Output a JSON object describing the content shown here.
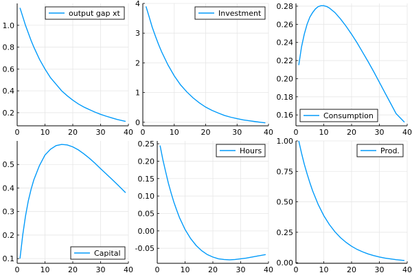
{
  "colors": {
    "series": "#009AFA",
    "grid": "#e6e6e6",
    "axis": "#000000",
    "background": "#ffffff"
  },
  "chart_data": [
    {
      "type": "line",
      "title": "",
      "xlabel": "",
      "ylabel": "",
      "grid": true,
      "legend_position": "top-right",
      "xlim": [
        0,
        40
      ],
      "ylim": [
        0.08,
        1.2
      ],
      "xticks": [
        0,
        10,
        20,
        30,
        40
      ],
      "yticks": [
        0.2,
        0.4,
        0.6,
        0.8,
        1.0
      ],
      "ytick_labels": [
        "0.2",
        "0.4",
        "0.6",
        "0.8",
        "1.0"
      ],
      "series": [
        {
          "name": "output gap xt",
          "x": [
            1,
            2,
            3,
            4,
            5,
            6,
            8,
            10,
            12,
            14,
            16,
            18,
            20,
            22,
            24,
            26,
            28,
            30,
            32,
            34,
            36,
            39
          ],
          "y": [
            1.16,
            1.08,
            1.0,
            0.93,
            0.86,
            0.8,
            0.69,
            0.6,
            0.52,
            0.46,
            0.4,
            0.355,
            0.315,
            0.28,
            0.252,
            0.228,
            0.205,
            0.185,
            0.168,
            0.153,
            0.138,
            0.12
          ]
        }
      ]
    },
    {
      "type": "line",
      "title": "",
      "xlabel": "",
      "ylabel": "",
      "grid": true,
      "legend_position": "top-right",
      "xlim": [
        0,
        40
      ],
      "ylim": [
        -0.12,
        4.0
      ],
      "xticks": [
        0,
        10,
        20,
        30,
        40
      ],
      "yticks": [
        0,
        1,
        2,
        3,
        4
      ],
      "ytick_labels": [
        "0",
        "1",
        "2",
        "3",
        "4"
      ],
      "series": [
        {
          "name": "Investment",
          "x": [
            1,
            2,
            3,
            4,
            5,
            6,
            8,
            10,
            12,
            14,
            16,
            18,
            20,
            22,
            24,
            26,
            28,
            30,
            32,
            34,
            36,
            39
          ],
          "y": [
            3.9,
            3.55,
            3.2,
            2.9,
            2.62,
            2.37,
            1.93,
            1.56,
            1.26,
            1.02,
            0.82,
            0.65,
            0.51,
            0.4,
            0.31,
            0.23,
            0.17,
            0.12,
            0.08,
            0.05,
            0.02,
            -0.02
          ]
        }
      ]
    },
    {
      "type": "line",
      "title": "",
      "xlabel": "",
      "ylabel": "",
      "grid": true,
      "legend_position": "bottom-left",
      "xlim": [
        0,
        40
      ],
      "ylim": [
        0.148,
        0.283
      ],
      "xticks": [
        0,
        10,
        20,
        30,
        40
      ],
      "yticks": [
        0.16,
        0.18,
        0.2,
        0.22,
        0.24,
        0.26,
        0.28
      ],
      "ytick_labels": [
        "0.16",
        "0.18",
        "0.20",
        "0.22",
        "0.24",
        "0.26",
        "0.28"
      ],
      "series": [
        {
          "name": "Consumption",
          "x": [
            1,
            2,
            3,
            4,
            5,
            6,
            7,
            8,
            9,
            10,
            11,
            12,
            14,
            16,
            18,
            20,
            22,
            24,
            26,
            28,
            30,
            32,
            34,
            36,
            39
          ],
          "y": [
            0.215,
            0.235,
            0.249,
            0.26,
            0.268,
            0.273,
            0.277,
            0.2795,
            0.2805,
            0.2805,
            0.2797,
            0.278,
            0.273,
            0.266,
            0.258,
            0.249,
            0.2395,
            0.229,
            0.2185,
            0.2075,
            0.196,
            0.1845,
            0.173,
            0.1615,
            0.152
          ]
        }
      ]
    },
    {
      "type": "line",
      "title": "",
      "xlabel": "",
      "ylabel": "",
      "grid": true,
      "legend_position": "bottom-right",
      "xlim": [
        0,
        40
      ],
      "ylim": [
        0.08,
        0.6
      ],
      "xticks": [
        0,
        10,
        20,
        30,
        40
      ],
      "yticks": [
        0.1,
        0.2,
        0.3,
        0.4,
        0.5
      ],
      "ytick_labels": [
        "0.1",
        "0.2",
        "0.3",
        "0.4",
        "0.5"
      ],
      "series": [
        {
          "name": "Capital",
          "x": [
            1,
            2,
            3,
            4,
            5,
            6,
            8,
            10,
            12,
            14,
            16,
            18,
            20,
            22,
            24,
            26,
            28,
            30,
            32,
            34,
            36,
            39
          ],
          "y": [
            0.1,
            0.2,
            0.28,
            0.345,
            0.395,
            0.435,
            0.495,
            0.54,
            0.565,
            0.58,
            0.585,
            0.583,
            0.575,
            0.562,
            0.545,
            0.526,
            0.505,
            0.482,
            0.46,
            0.438,
            0.415,
            0.38
          ]
        }
      ]
    },
    {
      "type": "line",
      "title": "",
      "xlabel": "",
      "ylabel": "",
      "grid": true,
      "legend_position": "top-right",
      "xlim": [
        0,
        40
      ],
      "ylim": [
        -0.093,
        0.258
      ],
      "xticks": [
        0,
        10,
        20,
        30,
        40
      ],
      "yticks": [
        -0.05,
        0,
        0.05,
        0.1,
        0.15,
        0.2,
        0.25
      ],
      "ytick_labels": [
        "-0.05",
        "0.00",
        "0.05",
        "0.10",
        "0.15",
        "0.20",
        "0.25"
      ],
      "series": [
        {
          "name": "Hours",
          "x": [
            1,
            2,
            3,
            4,
            5,
            6,
            7,
            8,
            10,
            12,
            14,
            16,
            18,
            20,
            22,
            24,
            26,
            28,
            30,
            32,
            34,
            36,
            39
          ],
          "y": [
            0.245,
            0.205,
            0.17,
            0.137,
            0.108,
            0.082,
            0.059,
            0.038,
            0.004,
            -0.022,
            -0.042,
            -0.057,
            -0.068,
            -0.075,
            -0.08,
            -0.082,
            -0.083,
            -0.082,
            -0.08,
            -0.078,
            -0.075,
            -0.072,
            -0.068
          ]
        }
      ]
    },
    {
      "type": "line",
      "title": "",
      "xlabel": "",
      "ylabel": "",
      "grid": true,
      "legend_position": "top-right",
      "xlim": [
        0,
        40
      ],
      "ylim": [
        -0.005,
        1.0
      ],
      "xticks": [
        0,
        10,
        20,
        30,
        40
      ],
      "yticks": [
        0,
        0.25,
        0.5,
        0.75,
        1.0
      ],
      "ytick_labels": [
        "0.00",
        "0.25",
        "0.50",
        "0.75",
        "1.00"
      ],
      "series": [
        {
          "name": "Prod.",
          "x": [
            1,
            2,
            3,
            4,
            5,
            6,
            8,
            10,
            12,
            14,
            16,
            18,
            20,
            22,
            24,
            26,
            28,
            30,
            32,
            34,
            36,
            39
          ],
          "y": [
            1.0,
            0.9,
            0.81,
            0.73,
            0.656,
            0.59,
            0.478,
            0.387,
            0.314,
            0.254,
            0.206,
            0.167,
            0.135,
            0.109,
            0.089,
            0.072,
            0.058,
            0.047,
            0.038,
            0.031,
            0.025,
            0.018
          ]
        }
      ]
    }
  ]
}
